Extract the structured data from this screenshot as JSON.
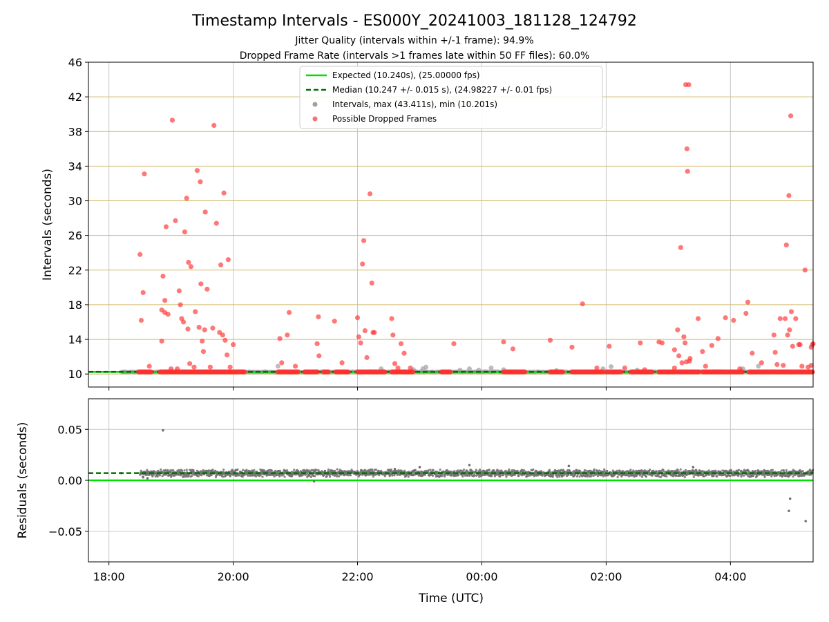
{
  "figure": {
    "title": "Timestamp Intervals - ES000Y_20241003_181128_124792",
    "subtitle1": "Jitter Quality (intervals within +/-1 frame): 94.9%",
    "subtitle2": "Dropped Frame Rate (intervals >1 frames late within 50 FF files): 60.0%"
  },
  "colors": {
    "expected": "#00e000",
    "median": "#007000",
    "intervals": "#a0a0a0",
    "dropped": "#ff3030",
    "residual_points": "#707070",
    "hgrid_top": "#d2b96a",
    "grid": "#c8c8c8"
  },
  "chart_data": [
    {
      "type": "scatter",
      "xlabel": "",
      "ylabel": "Intervals (seconds)",
      "x_unit": "hours since 18:00 UTC",
      "xlim": [
        -0.33,
        11.33
      ],
      "ylim": [
        8.5,
        46
      ],
      "yticks": [
        10,
        14,
        18,
        22,
        26,
        30,
        34,
        38,
        42,
        46
      ],
      "grid": true,
      "legend": "top-center",
      "legend_entries": [
        {
          "label": "Expected (10.240s), (25.00000 fps)",
          "kind": "line-solid",
          "color": "#00e000"
        },
        {
          "label": "Median (10.247 +/- 0.015 s), (24.98227 +/- 0.01 fps)",
          "kind": "line-dashed",
          "color": "#007000"
        },
        {
          "label": "Intervals, max (43.411s), min (10.201s)",
          "kind": "marker",
          "color": "#a0a0a0"
        },
        {
          "label": "Possible Dropped Frames",
          "kind": "marker",
          "color": "#ff3030"
        }
      ],
      "expected_value": 10.24,
      "median_value": 10.247,
      "baseline_interval_range": [
        0.2,
        11.33
      ],
      "dense_dropped_runs": [
        [
          0.48,
          0.7
        ],
        [
          0.82,
          2.2
        ],
        [
          2.72,
          3.05
        ],
        [
          3.15,
          3.35
        ],
        [
          3.45,
          3.55
        ],
        [
          3.65,
          3.85
        ],
        [
          4.0,
          4.45
        ],
        [
          4.55,
          4.9
        ],
        [
          5.35,
          5.5
        ],
        [
          6.35,
          6.7
        ],
        [
          7.1,
          7.3
        ],
        [
          7.45,
          7.95
        ],
        [
          8.0,
          8.25
        ],
        [
          8.4,
          8.75
        ],
        [
          8.85,
          9.12
        ],
        [
          9.15,
          9.5
        ],
        [
          9.55,
          10.2
        ],
        [
          10.3,
          11.33
        ]
      ],
      "series": [
        {
          "name": "Possible Dropped Frames",
          "points": [
            [
              0.5,
              23.8
            ],
            [
              0.52,
              16.2
            ],
            [
              0.55,
              19.4
            ],
            [
              0.57,
              33.1
            ],
            [
              0.65,
              10.9
            ],
            [
              0.85,
              13.8
            ],
            [
              0.85,
              17.4
            ],
            [
              0.87,
              21.3
            ],
            [
              0.9,
              17.1
            ],
            [
              0.9,
              18.5
            ],
            [
              0.92,
              27.0
            ],
            [
              0.95,
              16.9
            ],
            [
              1.0,
              10.6
            ],
            [
              1.02,
              39.3
            ],
            [
              1.07,
              27.7
            ],
            [
              1.1,
              10.6
            ],
            [
              1.13,
              19.6
            ],
            [
              1.15,
              18.0
            ],
            [
              1.17,
              16.4
            ],
            [
              1.2,
              16.0
            ],
            [
              1.22,
              26.4
            ],
            [
              1.25,
              30.3
            ],
            [
              1.27,
              15.2
            ],
            [
              1.28,
              22.9
            ],
            [
              1.3,
              11.2
            ],
            [
              1.32,
              22.4
            ],
            [
              1.37,
              10.8
            ],
            [
              1.39,
              17.2
            ],
            [
              1.42,
              33.5
            ],
            [
              1.45,
              15.4
            ],
            [
              1.47,
              32.2
            ],
            [
              1.48,
              20.4
            ],
            [
              1.5,
              13.8
            ],
            [
              1.52,
              12.6
            ],
            [
              1.54,
              15.1
            ],
            [
              1.55,
              28.7
            ],
            [
              1.58,
              19.8
            ],
            [
              1.63,
              10.8
            ],
            [
              1.67,
              15.3
            ],
            [
              1.69,
              38.7
            ],
            [
              1.73,
              27.4
            ],
            [
              1.78,
              14.8
            ],
            [
              1.8,
              22.6
            ],
            [
              1.83,
              14.5
            ],
            [
              1.85,
              30.9
            ],
            [
              1.87,
              13.9
            ],
            [
              1.9,
              12.2
            ],
            [
              1.92,
              23.2
            ],
            [
              1.95,
              10.8
            ],
            [
              2.0,
              13.4
            ],
            [
              2.75,
              14.1
            ],
            [
              2.78,
              11.3
            ],
            [
              2.87,
              14.5
            ],
            [
              2.9,
              17.1
            ],
            [
              3.0,
              10.9
            ],
            [
              3.35,
              13.5
            ],
            [
              3.37,
              16.6
            ],
            [
              3.38,
              12.1
            ],
            [
              3.63,
              16.1
            ],
            [
              3.75,
              11.3
            ],
            [
              4.0,
              16.5
            ],
            [
              4.02,
              14.3
            ],
            [
              4.05,
              13.6
            ],
            [
              4.08,
              22.7
            ],
            [
              4.1,
              25.4
            ],
            [
              4.12,
              15.0
            ],
            [
              4.15,
              11.9
            ],
            [
              4.2,
              30.8
            ],
            [
              4.23,
              20.5
            ],
            [
              4.25,
              14.8
            ],
            [
              4.27,
              14.8
            ],
            [
              4.55,
              16.4
            ],
            [
              4.57,
              14.5
            ],
            [
              4.6,
              11.2
            ],
            [
              4.65,
              10.7
            ],
            [
              4.7,
              13.5
            ],
            [
              4.75,
              12.4
            ],
            [
              4.85,
              10.7
            ],
            [
              5.55,
              13.5
            ],
            [
              6.35,
              13.7
            ],
            [
              6.5,
              12.9
            ],
            [
              7.1,
              13.9
            ],
            [
              7.45,
              13.1
            ],
            [
              7.62,
              18.1
            ],
            [
              7.85,
              10.7
            ],
            [
              8.05,
              13.2
            ],
            [
              8.3,
              10.7
            ],
            [
              8.55,
              13.6
            ],
            [
              8.62,
              10.5
            ],
            [
              8.85,
              13.7
            ],
            [
              8.9,
              13.6
            ],
            [
              9.1,
              10.7
            ],
            [
              9.1,
              12.8
            ],
            [
              9.15,
              15.1
            ],
            [
              9.17,
              12.1
            ],
            [
              9.2,
              24.6
            ],
            [
              9.22,
              11.3
            ],
            [
              9.25,
              14.3
            ],
            [
              9.27,
              13.6
            ],
            [
              9.28,
              43.4
            ],
            [
              9.29,
              11.4
            ],
            [
              9.3,
              36.0
            ],
            [
              9.31,
              33.4
            ],
            [
              9.33,
              43.4
            ],
            [
              9.34,
              11.5
            ],
            [
              9.35,
              11.8
            ],
            [
              9.48,
              16.4
            ],
            [
              9.55,
              12.6
            ],
            [
              9.6,
              10.9
            ],
            [
              9.7,
              13.3
            ],
            [
              9.8,
              14.1
            ],
            [
              9.92,
              16.5
            ],
            [
              10.05,
              16.2
            ],
            [
              10.15,
              10.6
            ],
            [
              10.25,
              17.0
            ],
            [
              10.28,
              18.3
            ],
            [
              10.35,
              12.4
            ],
            [
              10.5,
              11.3
            ],
            [
              10.7,
              14.5
            ],
            [
              10.72,
              12.5
            ],
            [
              10.75,
              11.1
            ],
            [
              10.8,
              16.4
            ],
            [
              10.85,
              11.0
            ],
            [
              10.88,
              16.4
            ],
            [
              10.9,
              24.9
            ],
            [
              10.92,
              14.5
            ],
            [
              10.94,
              30.6
            ],
            [
              10.95,
              15.1
            ],
            [
              10.97,
              39.8
            ],
            [
              10.98,
              17.2
            ],
            [
              11.0,
              13.2
            ],
            [
              11.05,
              16.4
            ],
            [
              11.1,
              13.4
            ],
            [
              11.12,
              13.4
            ],
            [
              11.15,
              10.9
            ],
            [
              11.2,
              22.0
            ],
            [
              11.25,
              10.8
            ],
            [
              11.3,
              11.0
            ],
            [
              11.3,
              13.1
            ],
            [
              11.32,
              13.4
            ],
            [
              11.33,
              13.5
            ]
          ]
        },
        {
          "name": "Intervals, max (43.411s), min (10.201s)",
          "points": [
            [
              0.25,
              10.25
            ],
            [
              2.72,
              10.9
            ],
            [
              4.38,
              10.6
            ],
            [
              4.9,
              10.5
            ],
            [
              5.05,
              10.6
            ],
            [
              5.1,
              10.8
            ],
            [
              5.65,
              10.45
            ],
            [
              5.8,
              10.6
            ],
            [
              5.95,
              10.45
            ],
            [
              6.15,
              10.7
            ],
            [
              6.35,
              10.5
            ],
            [
              7.2,
              10.4
            ],
            [
              7.95,
              10.6
            ],
            [
              8.08,
              10.85
            ],
            [
              8.5,
              10.45
            ],
            [
              10.2,
              10.6
            ],
            [
              10.45,
              10.9
            ]
          ]
        }
      ]
    },
    {
      "type": "scatter",
      "xlabel": "Time (UTC)",
      "ylabel": "Residuals (seconds)",
      "x_unit": "hours since 18:00 UTC",
      "xlim": [
        -0.33,
        11.33
      ],
      "ylim": [
        -0.08,
        0.08
      ],
      "yticks": [
        0.05,
        0.0,
        -0.05
      ],
      "yticklabels": [
        "0.05",
        "0.00",
        "−0.05"
      ],
      "xticks": [
        0,
        2,
        4,
        6,
        8,
        10
      ],
      "xticklabels": [
        "18:00",
        "20:00",
        "22:00",
        "00:00",
        "02:00",
        "04:00"
      ],
      "grid": true,
      "expected_value": 0.0,
      "median_value": 0.007,
      "residual_band": {
        "x_range": [
          0.5,
          11.33
        ],
        "center": 0.007,
        "spread": 0.004
      },
      "series": [
        {
          "name": "Residuals",
          "points": [
            [
              0.2,
              0.007
            ],
            [
              0.55,
              0.003
            ],
            [
              0.62,
              0.002
            ],
            [
              0.87,
              0.049
            ],
            [
              10.96,
              -0.018
            ],
            [
              10.94,
              -0.03
            ],
            [
              11.21,
              -0.04
            ],
            [
              5.0,
              0.013
            ],
            [
              5.8,
              0.015
            ],
            [
              4.6,
              0.011
            ],
            [
              7.4,
              0.014
            ],
            [
              3.3,
              -0.001
            ],
            [
              9.4,
              0.013
            ]
          ]
        }
      ]
    }
  ]
}
